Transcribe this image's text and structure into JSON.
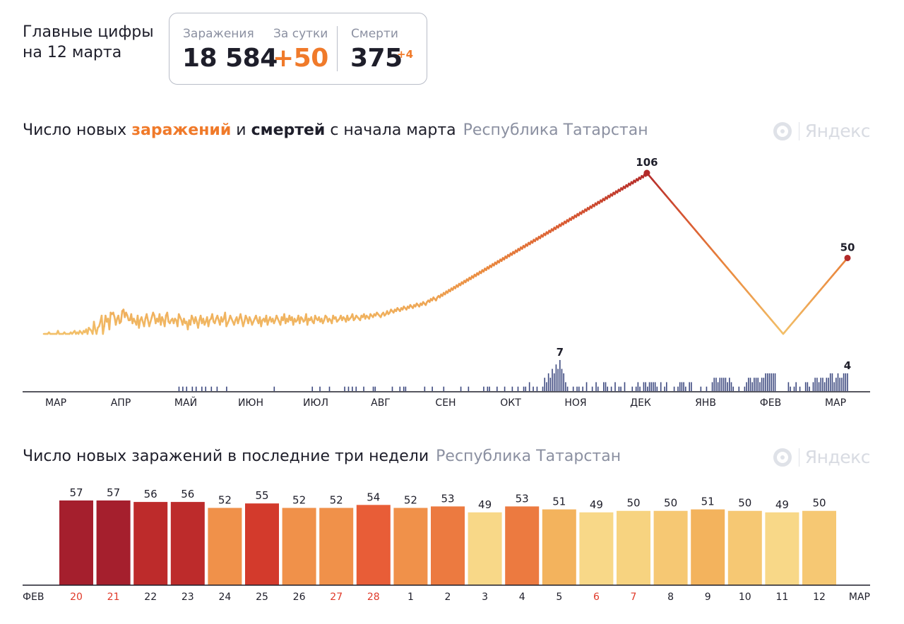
{
  "headline": {
    "line1": "Главные цифры",
    "line2": "на 12 марта"
  },
  "stats": {
    "infections_label": "Заражения",
    "infections_value": "18 584",
    "daily_label": "За сутки",
    "daily_value": "+50",
    "deaths_label": "Смерти",
    "deaths_value": "375",
    "deaths_delta": "+4"
  },
  "brand": {
    "label": "Яндекс",
    "icon": "yandex-logo-icon"
  },
  "colors": {
    "accent": "#f07a2a",
    "text": "#1e1e2a",
    "muted": "#8b90a1",
    "deaths_bar": "#3e4a80"
  },
  "chart1": {
    "title_part1": "Число новых ",
    "title_highlight1": "заражений",
    "title_part2": " и ",
    "title_highlight2": "смертей",
    "title_part3": " с начала марта",
    "region": "Республика Татарстан"
  },
  "chart2": {
    "title": "Число новых заражений в последние три недели",
    "region": "Республика Татарстан"
  },
  "chart_data": [
    {
      "type": "line",
      "series": [
        {
          "values": [
            0,
            0,
            0,
            0,
            1,
            0,
            0,
            0,
            0,
            0,
            0,
            2,
            0,
            0,
            0,
            0,
            1,
            0,
            0,
            0,
            0,
            1,
            0,
            1,
            2,
            0,
            1,
            0,
            2,
            1,
            0,
            2,
            1,
            3,
            0,
            4,
            3,
            2,
            0,
            8,
            3,
            0,
            4,
            5,
            8,
            12,
            0,
            5,
            12,
            8,
            10,
            3,
            14,
            13,
            14,
            11,
            6,
            10,
            12,
            7,
            8,
            15,
            16,
            11,
            14,
            12,
            9,
            9,
            13,
            7,
            10,
            8,
            6,
            12,
            4,
            9,
            11,
            8,
            5,
            10,
            13,
            9,
            5,
            8,
            11,
            14,
            12,
            7,
            10,
            8,
            13,
            6,
            11,
            9,
            5,
            12,
            14,
            8,
            7,
            9,
            10,
            7,
            10,
            9,
            5,
            13,
            11,
            9,
            6,
            10,
            7,
            8,
            3,
            9,
            6,
            12,
            10,
            7,
            11,
            8,
            4,
            9,
            12,
            7,
            10,
            6,
            8,
            11,
            5,
            9,
            10,
            13,
            8,
            7,
            10,
            12,
            9,
            6,
            11,
            8,
            10,
            14,
            5,
            7,
            9,
            12,
            10,
            8,
            6,
            9,
            11,
            7,
            10,
            13,
            9,
            5,
            8,
            12,
            10,
            7,
            11,
            9,
            6,
            8,
            10,
            12,
            9,
            7,
            11,
            5,
            9,
            10,
            8,
            12,
            6,
            9,
            11,
            8,
            10,
            7,
            9,
            12,
            10,
            8,
            6,
            11,
            9,
            13,
            7,
            10,
            8,
            12,
            9,
            11,
            6,
            10,
            8,
            9,
            12,
            7,
            11,
            10,
            8,
            9,
            13,
            6,
            10,
            9,
            11,
            8,
            7,
            12,
            10,
            9,
            11,
            8,
            10,
            7,
            9,
            12,
            11,
            8,
            10,
            9,
            7,
            12,
            10,
            11,
            8,
            9,
            10,
            12,
            9,
            11,
            10,
            8,
            12,
            9,
            10,
            11,
            13,
            9,
            10,
            12,
            11,
            10,
            9,
            12,
            11,
            13,
            10,
            12,
            11,
            10,
            13,
            12,
            11,
            13,
            12,
            14,
            13,
            12,
            11,
            13,
            14,
            12,
            13,
            15,
            13,
            14,
            16,
            15,
            14,
            16,
            15,
            17,
            16,
            15,
            17,
            16,
            18,
            17,
            16,
            18,
            17,
            19,
            18,
            17,
            19,
            18,
            20,
            19,
            18,
            20,
            19,
            21,
            20,
            19,
            21,
            22,
            21,
            23,
            22,
            24,
            23,
            22,
            24,
            25,
            24,
            26,
            25,
            27,
            26,
            28,
            27,
            29,
            28,
            30,
            29,
            31,
            30,
            32,
            31,
            33,
            32,
            34,
            33,
            35,
            34,
            36,
            35,
            37,
            36,
            38,
            37,
            39,
            38,
            40,
            39,
            41,
            40,
            42,
            41,
            43,
            42,
            44,
            43,
            45,
            44,
            46,
            45,
            47,
            46,
            48,
            47,
            49,
            48,
            50,
            49,
            51,
            50,
            52,
            51,
            53,
            52,
            54,
            53,
            55,
            54,
            56,
            55,
            57,
            56,
            58,
            57,
            59,
            58,
            60,
            59,
            61,
            60,
            62,
            61,
            63,
            62,
            64,
            63,
            65,
            64,
            66,
            65,
            67,
            66,
            68,
            67,
            69,
            68,
            70,
            69,
            71,
            70,
            72,
            71,
            73,
            72,
            74,
            73,
            75,
            74,
            76,
            75,
            77,
            76,
            78,
            77,
            79,
            78,
            80,
            79,
            81,
            80,
            82,
            81,
            83,
            82,
            84,
            83,
            85,
            84,
            86,
            85,
            87,
            86,
            88,
            87,
            89,
            88,
            90,
            89,
            91,
            90,
            92,
            91,
            93,
            92,
            94,
            93,
            95,
            94,
            96,
            95,
            97,
            96,
            98,
            97,
            99,
            98,
            100,
            99,
            101,
            100,
            102,
            101,
            103,
            102,
            104,
            103,
            105,
            104,
            106,
            105,
            104,
            103,
            102,
            101,
            100,
            99,
            98,
            97,
            96,
            95,
            94,
            93,
            92,
            91,
            90,
            89,
            88,
            87,
            86,
            85,
            84,
            83,
            82,
            81,
            80,
            79,
            78,
            77,
            76,
            75,
            74,
            73,
            72,
            71,
            70,
            69,
            68,
            67,
            66,
            65,
            64,
            63,
            62,
            61,
            60,
            59,
            58,
            57,
            56,
            55,
            54,
            53,
            52,
            51,
            50,
            49,
            48,
            47,
            46,
            45,
            44,
            43,
            42,
            41,
            40,
            39,
            38,
            37,
            36,
            35,
            34,
            33,
            32,
            31,
            30,
            29,
            28,
            27,
            26,
            25,
            24,
            23,
            22,
            21,
            20,
            19,
            18,
            17,
            16,
            15,
            14,
            13,
            12,
            11,
            10,
            9,
            8,
            7,
            6,
            5,
            4,
            3,
            2,
            1,
            0,
            1,
            2,
            3,
            4,
            5,
            6,
            7,
            8,
            9,
            10,
            11,
            12,
            13,
            14,
            15,
            16,
            17,
            18,
            19,
            20,
            21,
            22,
            23,
            24,
            25,
            26,
            27,
            28,
            29,
            30,
            31,
            32,
            33,
            34,
            35,
            36,
            37,
            38,
            39,
            40,
            41,
            42,
            43,
            44,
            45,
            46,
            47,
            48,
            49,
            50
          ],
          "peak_label": "106",
          "last_label": "50"
        }
      ],
      "deaths": {
        "values": [
          0,
          0,
          0,
          0,
          0,
          0,
          0,
          0,
          0,
          0,
          0,
          0,
          0,
          0,
          0,
          0,
          0,
          0,
          0,
          0,
          0,
          0,
          0,
          0,
          0,
          0,
          0,
          0,
          0,
          0,
          0,
          0,
          0,
          0,
          0,
          0,
          0,
          0,
          0,
          0,
          0,
          0,
          0,
          0,
          0,
          0,
          0,
          0,
          0,
          0,
          0,
          0,
          0,
          0,
          0,
          0,
          0,
          0,
          0,
          0,
          0,
          0,
          0,
          0,
          0,
          0,
          0,
          0,
          0,
          0,
          0,
          1,
          0,
          1,
          0,
          1,
          0,
          0,
          1,
          0,
          1,
          0,
          0,
          1,
          0,
          1,
          0,
          0,
          1,
          0,
          0,
          1,
          0,
          0,
          0,
          0,
          1,
          0,
          0,
          0,
          0,
          0,
          0,
          0,
          0,
          0,
          0,
          0,
          0,
          0,
          0,
          0,
          0,
          0,
          0,
          0,
          0,
          0,
          0,
          0,
          0,
          1,
          0,
          0,
          0,
          0,
          0,
          0,
          0,
          0,
          0,
          0,
          0,
          0,
          0,
          0,
          0,
          0,
          0,
          0,
          0,
          1,
          0,
          0,
          0,
          1,
          0,
          0,
          0,
          0,
          1,
          0,
          0,
          0,
          0,
          0,
          0,
          0,
          1,
          0,
          1,
          0,
          1,
          0,
          1,
          0,
          0,
          0,
          1,
          0,
          0,
          0,
          0,
          1,
          1,
          0,
          0,
          0,
          0,
          0,
          0,
          0,
          0,
          1,
          0,
          0,
          0,
          1,
          0,
          1,
          1,
          0,
          0,
          0,
          0,
          0,
          0,
          0,
          0,
          0,
          1,
          0,
          0,
          0,
          1,
          0,
          0,
          0,
          0,
          0,
          1,
          0,
          0,
          0,
          0,
          0,
          0,
          0,
          0,
          1,
          0,
          0,
          0,
          1,
          0,
          0,
          0,
          0,
          0,
          0,
          0,
          1,
          0,
          1,
          1,
          0,
          0,
          0,
          1,
          0,
          0,
          0,
          1,
          0,
          0,
          0,
          1,
          0,
          0,
          1,
          0,
          0,
          1,
          1,
          0,
          2,
          0,
          1,
          0,
          1,
          0,
          0,
          1,
          3,
          2,
          4,
          3,
          5,
          4,
          6,
          5,
          7,
          5,
          4,
          2,
          1,
          0,
          0,
          1,
          0,
          1,
          1,
          0,
          1,
          0,
          2,
          0,
          0,
          1,
          0,
          2,
          1,
          0,
          0,
          2,
          2,
          1,
          0,
          1,
          0,
          2,
          0,
          1,
          1,
          0,
          2,
          0,
          0,
          0,
          1,
          0,
          1,
          2,
          1,
          0,
          2,
          2,
          1,
          2,
          2,
          2,
          2,
          1,
          0,
          2,
          0,
          1,
          2,
          0,
          0,
          0,
          1,
          0,
          1,
          2,
          2,
          2,
          1,
          0,
          2,
          2,
          0,
          0,
          0,
          0,
          1,
          0,
          0,
          1,
          0,
          0,
          2,
          3,
          3,
          2,
          3,
          3,
          3,
          3,
          2,
          3,
          2,
          1,
          0,
          0,
          1,
          0,
          0,
          1,
          2,
          3,
          3,
          2,
          3,
          3,
          3,
          2,
          3,
          3,
          4,
          4,
          4,
          4,
          4,
          4,
          0,
          0,
          0,
          0,
          0,
          0,
          2,
          1,
          0,
          1,
          2,
          0,
          1,
          0,
          0,
          2,
          2,
          1,
          0,
          2,
          3,
          3,
          2,
          3,
          3,
          2,
          3,
          3,
          4,
          4,
          2,
          3,
          4,
          3,
          3,
          4,
          4,
          4
        ],
        "peak_label": "7",
        "last_label": "4"
      },
      "x_ticks": [
        "МАР",
        "АПР",
        "МАЙ",
        "ИЮН",
        "ИЮЛ",
        "АВГ",
        "СЕН",
        "ОКТ",
        "НОЯ",
        "ДЕК",
        "ЯНВ",
        "ФЕВ",
        "МАР"
      ]
    },
    {
      "type": "bar",
      "categories": [
        "20",
        "21",
        "22",
        "23",
        "24",
        "25",
        "26",
        "27",
        "28",
        "1",
        "2",
        "3",
        "4",
        "5",
        "6",
        "7",
        "8",
        "9",
        "10",
        "11",
        "12"
      ],
      "values": [
        57,
        57,
        56,
        56,
        52,
        55,
        52,
        52,
        54,
        52,
        53,
        49,
        53,
        51,
        49,
        50,
        50,
        51,
        50,
        49,
        50
      ],
      "weekend": [
        true,
        true,
        false,
        false,
        false,
        false,
        false,
        true,
        true,
        false,
        false,
        false,
        false,
        false,
        true,
        true,
        false,
        false,
        false,
        false,
        false
      ],
      "bar_colors": [
        "#a51f2d",
        "#a51f2d",
        "#bd2b2b",
        "#bd2b2b",
        "#f0914a",
        "#d33a2c",
        "#f0914a",
        "#f0914a",
        "#e85d37",
        "#f0914a",
        "#ec7a40",
        "#f8d888",
        "#ec7a40",
        "#f3b35d",
        "#f8d888",
        "#f7d380",
        "#f6c873",
        "#f3b35d",
        "#f6c873",
        "#f8d888",
        "#f6c873"
      ],
      "x_start_label": "ФЕВ",
      "x_end_label": "МАР"
    }
  ]
}
